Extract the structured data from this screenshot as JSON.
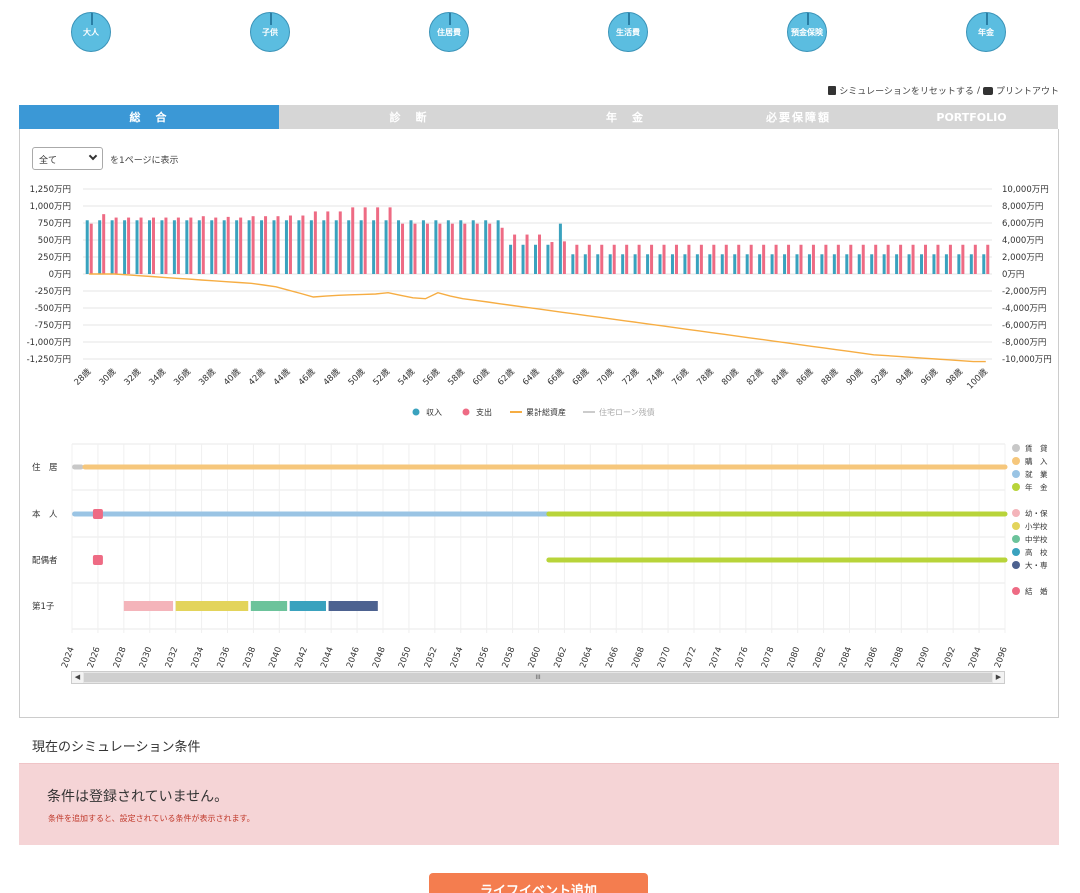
{
  "steps": [
    {
      "label": "大人"
    },
    {
      "label": "子供"
    },
    {
      "label": "住居費"
    },
    {
      "label": "生活費"
    },
    {
      "label": "預金保険"
    },
    {
      "label": "年金"
    }
  ],
  "toplinks": {
    "reset": "シミュレーションをリセットする",
    "separator": "/",
    "print": "プリントアウト"
  },
  "tabs": [
    {
      "label": "総　合",
      "active": true
    },
    {
      "label": "診　断",
      "active": false
    },
    {
      "label": "年　金",
      "active": false
    },
    {
      "label": "必要保障額",
      "active": false
    },
    {
      "label": "PORTFOLIO",
      "active": false
    }
  ],
  "page_select": {
    "value": "全て",
    "suffix": "を1ページに表示"
  },
  "colors": {
    "income": "#3aa2be",
    "expense": "#ee6b84",
    "assets": "#f6ad43",
    "loan": "#cccccc",
    "tab_active": "#3b98d6",
    "button": "#f47d4f"
  },
  "chart_data": {
    "type": "bar",
    "left_ticks": [
      "1,250万円",
      "1,000万円",
      "750万円",
      "500万円",
      "250万円",
      "0万円",
      "-250万円",
      "-500万円",
      "-750万円",
      "-1,000万円",
      "-1,250万円"
    ],
    "right_ticks": [
      "10,000万円",
      "8,000万円",
      "6,000万円",
      "4,000万円",
      "2,000万円",
      "0万円",
      "-2,000万円",
      "-4,000万円",
      "-6,000万円",
      "-8,000万円",
      "-10,000万円"
    ],
    "ylim_left": [
      -1250,
      1250
    ],
    "ylim_right": [
      -10000,
      10000
    ],
    "ages_start": 28,
    "ages_end": 100,
    "x_tick_labels": [
      "28歳",
      "30歳",
      "32歳",
      "34歳",
      "36歳",
      "38歳",
      "40歳",
      "42歳",
      "44歳",
      "46歳",
      "48歳",
      "50歳",
      "52歳",
      "54歳",
      "56歳",
      "58歳",
      "60歳",
      "62歳",
      "64歳",
      "66歳",
      "68歳",
      "70歳",
      "72歳",
      "74歳",
      "76歳",
      "78歳",
      "80歳",
      "82歳",
      "84歳",
      "86歳",
      "88歳",
      "90歳",
      "92歳",
      "94歳",
      "96歳",
      "98歳",
      "100歳"
    ],
    "series": [
      {
        "name": "収入",
        "values": [
          790,
          790,
          790,
          790,
          790,
          790,
          790,
          790,
          790,
          790,
          790,
          790,
          790,
          790,
          790,
          790,
          790,
          790,
          790,
          790,
          790,
          790,
          790,
          790,
          790,
          790,
          790,
          790,
          790,
          790,
          790,
          790,
          790,
          790,
          430,
          430,
          430,
          430,
          740,
          290,
          290,
          290,
          290,
          290,
          290,
          290,
          290,
          290,
          290,
          290,
          290,
          290,
          290,
          290,
          290,
          290,
          290,
          290,
          290,
          290,
          290,
          290,
          290,
          290,
          290,
          290,
          290,
          290,
          290,
          290,
          290,
          290,
          290
        ]
      },
      {
        "name": "支出",
        "values": [
          740,
          880,
          830,
          830,
          830,
          830,
          830,
          830,
          830,
          850,
          830,
          840,
          830,
          850,
          850,
          850,
          860,
          860,
          920,
          920,
          920,
          980,
          980,
          980,
          980,
          740,
          740,
          740,
          740,
          740,
          740,
          740,
          740,
          680,
          580,
          580,
          580,
          470,
          480,
          430,
          430,
          430,
          430,
          430,
          430,
          430,
          430,
          430,
          430,
          430,
          430,
          430,
          430,
          430,
          430,
          430,
          430,
          430,
          430,
          430,
          430,
          430,
          430,
          430,
          430,
          430,
          430,
          430,
          430,
          430,
          430,
          430,
          430
        ]
      },
      {
        "name": "累計総資産",
        "values": [
          0,
          0,
          0,
          -100,
          -200,
          -300,
          -400,
          -500,
          -600,
          -700,
          -800,
          -900,
          -1000,
          -1100,
          -1300,
          -1500,
          -1900,
          -2300,
          -2700,
          -2600,
          -2500,
          -2450,
          -2400,
          -2350,
          -2200,
          -2500,
          -2800,
          -2900,
          -2200,
          -2600,
          -2900,
          -3100,
          -3300,
          -3500,
          -3700,
          -3900,
          -4100,
          -4300,
          -4500,
          -4700,
          -4900,
          -5100,
          -5300,
          -5500,
          -5700,
          -5900,
          -6100,
          -6300,
          -6500,
          -6700,
          -6900,
          -7100,
          -7300,
          -7500,
          -7700,
          -7900,
          -8100,
          -8300,
          -8500,
          -8700,
          -8900,
          -9100,
          -9300,
          -9500,
          -9600,
          -9700,
          -9800,
          -9900,
          -10000,
          -10100,
          -10200,
          -10300,
          -10300
        ]
      },
      {
        "name": "住宅ローン残債",
        "values": []
      }
    ],
    "legend": [
      "収入",
      "支出",
      "累計総資産",
      "住宅ローン残債"
    ]
  },
  "timeline": {
    "rows": [
      {
        "label": "住　居"
      },
      {
        "label": "本　人"
      },
      {
        "label": "配偶者"
      },
      {
        "label": "第1子"
      }
    ],
    "years": [
      "2024",
      "2026",
      "2028",
      "2030",
      "2032",
      "2034",
      "2036",
      "2038",
      "2040",
      "2042",
      "2044",
      "2046",
      "2048",
      "2050",
      "2052",
      "2054",
      "2056",
      "2058",
      "2060",
      "2062",
      "2064",
      "2066",
      "2068",
      "2070",
      "2072",
      "2074",
      "2076",
      "2078",
      "2080",
      "2082",
      "2084",
      "2086",
      "2088",
      "2090",
      "2092",
      "2094",
      "2096"
    ],
    "legend": [
      {
        "label": "賃　貸",
        "color": "#c8c8c8"
      },
      {
        "label": "購　入",
        "color": "#f6c77c"
      },
      {
        "label": "就　業",
        "color": "#9ac4e4"
      },
      {
        "label": "年　金",
        "color": "#b8d43a"
      },
      {
        "label": "幼・保",
        "color": "#f4b4ba"
      },
      {
        "label": "小学校",
        "color": "#e3d45b"
      },
      {
        "label": "中学校",
        "color": "#6cc39b"
      },
      {
        "label": "高　校",
        "color": "#3aa2be"
      },
      {
        "label": "大・専",
        "color": "#4d6290"
      },
      {
        "label": "結　婚",
        "color": "#ee6b84"
      }
    ]
  },
  "conditions": {
    "title": "現在のシミュレーション条件",
    "message": "条件は登録されていません。",
    "hint": "条件を追加すると、設定されている条件が表示されます。"
  },
  "add_button": {
    "label": "ライフイベント追加"
  }
}
